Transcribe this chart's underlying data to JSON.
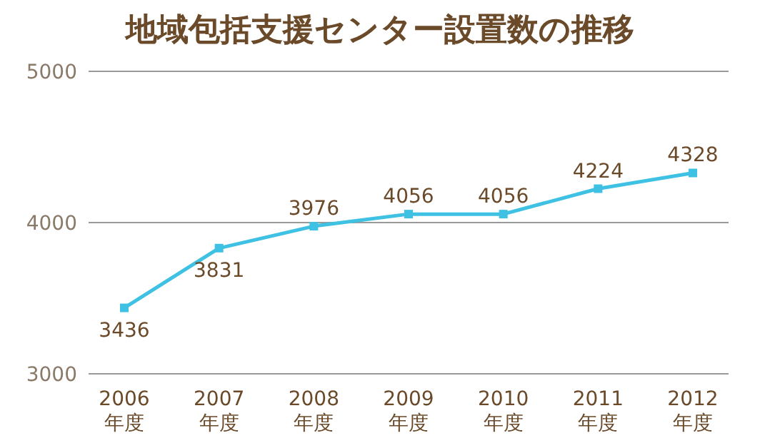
{
  "chart_data": {
    "type": "line",
    "title": "地域包括支援センター設置数の推移",
    "categories": [
      "2006\n年度",
      "2007\n年度",
      "2008\n年度",
      "2009\n年度",
      "2010\n年度",
      "2011\n年度",
      "2012\n年度"
    ],
    "series": [
      {
        "color": "#3ec1e3",
        "values": [
          3436,
          3831,
          3976,
          4056,
          4056,
          4224,
          4328
        ]
      }
    ],
    "ylim": [
      3000,
      5000
    ],
    "yticks": [
      3000,
      4000,
      5000
    ],
    "grid": "y",
    "marker": "square",
    "data_labels": true
  }
}
